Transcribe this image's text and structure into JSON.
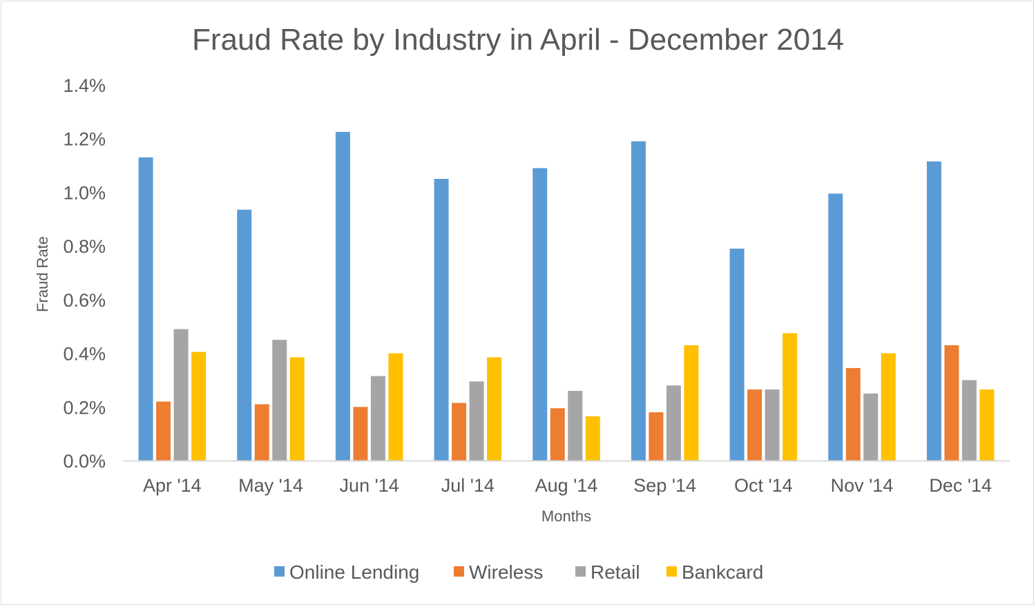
{
  "chart_data": {
    "type": "bar",
    "title": "Fraud Rate by Industry in April - December 2014",
    "xlabel": "Months",
    "ylabel": "Fraud Rate",
    "ylim": [
      0,
      1.4
    ],
    "yticks": [
      "0.0%",
      "0.2%",
      "0.4%",
      "0.6%",
      "0.8%",
      "1.0%",
      "1.2%",
      "1.4%"
    ],
    "ytick_values": [
      0,
      0.2,
      0.4,
      0.6,
      0.8,
      1.0,
      1.2,
      1.4
    ],
    "value_unit": "%",
    "grid": false,
    "legend_position": "bottom",
    "categories": [
      "Apr '14",
      "May '14",
      "Jun '14",
      "Jul '14",
      "Aug '14",
      "Sep '14",
      "Oct '14",
      "Nov '14",
      "Dec '14"
    ],
    "series": [
      {
        "name": "Online Lending",
        "color": "#5b9bd5",
        "values": [
          1.13,
          0.935,
          1.225,
          1.05,
          1.09,
          1.19,
          0.79,
          0.995,
          1.115
        ]
      },
      {
        "name": "Wireless",
        "color": "#ed7d31",
        "values": [
          0.22,
          0.21,
          0.2,
          0.215,
          0.195,
          0.18,
          0.265,
          0.345,
          0.43
        ]
      },
      {
        "name": "Retail",
        "color": "#a5a5a5",
        "values": [
          0.49,
          0.45,
          0.315,
          0.295,
          0.26,
          0.28,
          0.265,
          0.25,
          0.3
        ]
      },
      {
        "name": "Bankcard",
        "color": "#ffc000",
        "values": [
          0.405,
          0.385,
          0.4,
          0.385,
          0.165,
          0.43,
          0.475,
          0.4,
          0.265
        ]
      }
    ]
  },
  "colors": {
    "text": "#595959",
    "axis_line": "#d9d9d9",
    "frame_border": "#d9d9d9"
  }
}
